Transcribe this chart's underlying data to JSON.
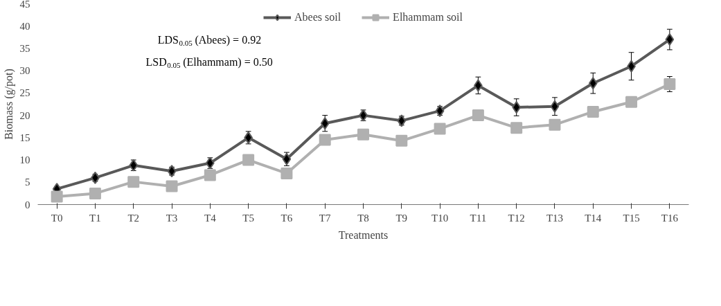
{
  "chart_data": {
    "type": "line",
    "xlabel": "Treatments",
    "ylabel": "Biomass (g/pot)",
    "categories": [
      "T0",
      "T1",
      "T2",
      "T3",
      "T4",
      "T5",
      "T6",
      "T7",
      "T8",
      "T9",
      "T10",
      "T11",
      "T12",
      "T13",
      "T14",
      "T15",
      "T16"
    ],
    "series": [
      {
        "name": "Abees soil",
        "color": "#595959",
        "marker": "diamond",
        "values": [
          3.5,
          6,
          8.8,
          7.5,
          9.3,
          15,
          10.2,
          18.2,
          20,
          18.8,
          21,
          26.7,
          21.8,
          22,
          27.2,
          31,
          37
        ],
        "errors": [
          0.5,
          0.8,
          1.2,
          0.9,
          1.2,
          1.4,
          1.5,
          1.8,
          1.2,
          1,
          1,
          1.9,
          1.9,
          2,
          2.3,
          3.1,
          2.3
        ]
      },
      {
        "name": "Elhammam soil",
        "color": "#b0b0b0",
        "marker": "square",
        "values": [
          1.8,
          2.5,
          5.1,
          4.1,
          6.6,
          10,
          7,
          14.5,
          15.7,
          14.3,
          17,
          20,
          17.2,
          17.9,
          20.8,
          23,
          27
        ],
        "errors": [
          null,
          null,
          null,
          null,
          null,
          null,
          null,
          null,
          null,
          null,
          null,
          null,
          null,
          null,
          null,
          null,
          1.7
        ]
      }
    ],
    "ylim": [
      0,
      45
    ],
    "yticks": [
      0,
      5,
      10,
      15,
      20,
      25,
      30,
      35,
      40,
      45
    ],
    "annotations": [
      "LDS$_{0.05}$ (Abees) = 0.92",
      "LSD$_{0.05}$ (Elhammam) = 0.50"
    ],
    "grid": false,
    "legend": "top"
  }
}
